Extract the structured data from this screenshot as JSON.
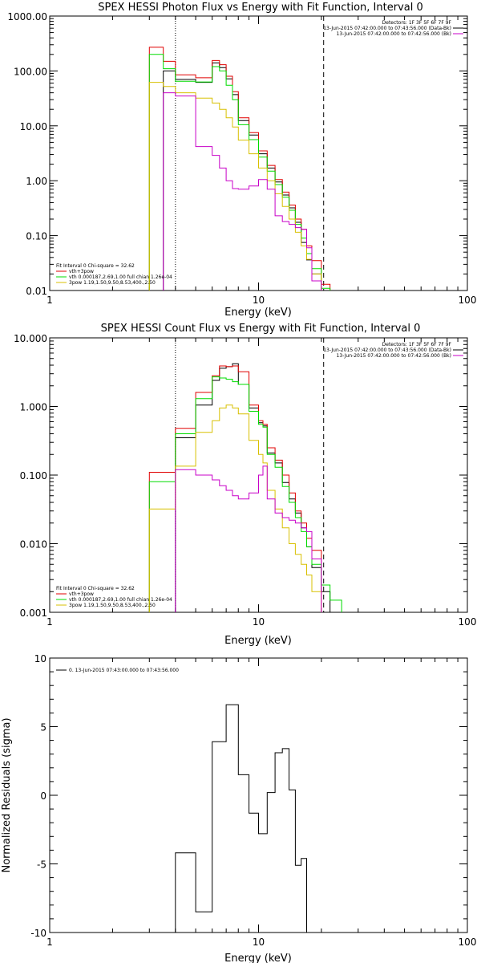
{
  "chart_data": [
    {
      "type": "line",
      "title": "SPEX HESSI Photon Flux vs Energy with Fit Function, Interval 0",
      "xlabel": "Energy (keV)",
      "ylabel": "",
      "x_scale": "log",
      "y_scale": "log",
      "xlim": [
        1,
        100
      ],
      "ylim": [
        0.01,
        1000
      ],
      "x_ticks": [
        "1",
        "10",
        "100"
      ],
      "y_ticks": [
        "0.01",
        "0.10",
        "1.00",
        "10.00",
        "100.00",
        "1000.00"
      ],
      "vlines": [
        {
          "x": 4,
          "style": "dotted",
          "color": "#000000"
        },
        {
          "x": 20.5,
          "style": "dashed",
          "color": "#000000"
        }
      ],
      "legend_top": {
        "position": "top-right",
        "header": "Detectors: 1F 3F 5F 6F 7F 9F",
        "entries": [
          {
            "text": "13-Jun-2015 07:42:00.000 to 07:43:56.000 (Data-Bk)",
            "color": "#000000"
          },
          {
            "text": "13-Jun-2015 07:42:00.000 to 07:42:56.000 (Bk)",
            "color": "#c800c8"
          }
        ]
      },
      "legend_bottom": {
        "position": "bottom-left",
        "header": "Fit Interval 0   Chi-square = 32.62",
        "entries": [
          {
            "text": "vth+3pow",
            "color": "#e00000"
          },
          {
            "text": "vth 0.000187,2.69,1.00  full chian 1.26e-04",
            "color": "#00dc00"
          },
          {
            "text": "3pow 1.19,1.50,9.50,8.53,400.,2.50",
            "color": "#d8c000"
          }
        ]
      },
      "bin_edges": [
        3.0,
        3.5,
        4.0,
        5.0,
        6.0,
        6.5,
        7.0,
        7.5,
        8.0,
        9.0,
        10.0,
        11.0,
        12.0,
        13.0,
        14.0,
        15.0,
        16.0,
        17.0,
        18.0,
        20.0,
        22.0,
        25.0
      ],
      "series": [
        {
          "color": "#000000",
          "values": [
            null,
            100,
            70,
            62,
            140,
            115,
            72,
            37,
            12.5,
            6.8,
            3.1,
            1.7,
            0.95,
            0.55,
            0.32,
            0.175,
            0.075,
            0.036,
            0.02,
            null,
            null
          ]
        },
        {
          "color": "#e00000",
          "values": [
            270,
            150,
            85,
            75,
            155,
            130,
            80,
            42,
            14,
            7.5,
            3.5,
            1.9,
            1.05,
            0.62,
            0.36,
            0.2,
            0.13,
            0.065,
            0.035,
            0.013,
            null
          ]
        },
        {
          "color": "#00dc00",
          "values": [
            200,
            110,
            65,
            63,
            120,
            100,
            55,
            30,
            10.5,
            5.6,
            2.7,
            1.5,
            0.85,
            0.5,
            0.29,
            0.16,
            0.09,
            0.047,
            0.025,
            0.011,
            null
          ]
        },
        {
          "color": "#d8c000",
          "values": [
            62,
            52,
            40,
            32,
            26,
            20,
            14,
            9.5,
            5.5,
            3.1,
            1.7,
            1.0,
            0.58,
            0.34,
            0.2,
            0.115,
            0.065,
            0.037,
            0.02,
            null,
            null
          ]
        },
        {
          "color": "#c800c8",
          "values": [
            null,
            40,
            35,
            4.2,
            2.9,
            1.7,
            1.0,
            0.72,
            0.7,
            0.8,
            1.05,
            0.7,
            0.23,
            0.18,
            0.16,
            0.14,
            0.13,
            0.06,
            0.015,
            null,
            null
          ]
        }
      ]
    },
    {
      "type": "line",
      "title": "SPEX HESSI Count Flux vs Energy with Fit Function, Interval 0",
      "xlabel": "Energy (keV)",
      "ylabel": "",
      "x_scale": "log",
      "y_scale": "log",
      "xlim": [
        1,
        100
      ],
      "ylim": [
        0.001,
        10
      ],
      "x_ticks": [
        "1",
        "10",
        "100"
      ],
      "y_ticks": [
        "0.001",
        "0.010",
        "0.100",
        "1.000",
        "10.000"
      ],
      "vlines": [
        {
          "x": 4,
          "style": "dotted",
          "color": "#000000"
        },
        {
          "x": 20.5,
          "style": "dashed",
          "color": "#000000"
        }
      ],
      "legend_top": {
        "position": "top-right",
        "header": "Detectors: 1F 3F 5F 6F 7F 9F",
        "entries": [
          {
            "text": "13-Jun-2015 07:42:00.000 to 07:43:56.000 (Data-Bk)",
            "color": "#000000"
          },
          {
            "text": "13-Jun-2015 07:42:00.000 to 07:42:56.000 (Bk)",
            "color": "#c800c8"
          }
        ]
      },
      "legend_bottom": {
        "position": "bottom-left",
        "header": "Fit Interval 0   Chi-square = 32.62",
        "entries": [
          {
            "text": "vth+3pow",
            "color": "#e00000"
          },
          {
            "text": "vth 0.000187,2.69,1.00  full chian 1.26e-04",
            "color": "#00dc00"
          },
          {
            "text": "3pow 1.19,1.50,9.50,8.53,400.,2.50",
            "color": "#d8c000"
          }
        ]
      },
      "bin_edges": [
        3.0,
        4.0,
        5.0,
        6.0,
        6.5,
        7.0,
        7.5,
        8.0,
        9.0,
        10.0,
        10.5,
        11.0,
        12.0,
        13.0,
        14.0,
        15.0,
        16.0,
        17.0,
        18.0,
        20.0,
        22.0,
        25.0
      ],
      "series": [
        {
          "color": "#000000",
          "values": [
            null,
            0.35,
            1.05,
            2.4,
            3.6,
            3.8,
            4.2,
            2.1,
            0.95,
            0.58,
            0.52,
            0.21,
            0.15,
            0.078,
            0.045,
            0.028,
            0.017,
            0.009,
            0.0045,
            0.002,
            null
          ]
        },
        {
          "color": "#e00000",
          "values": [
            0.11,
            0.48,
            1.6,
            2.8,
            3.9,
            3.8,
            3.9,
            3.2,
            1.05,
            0.62,
            0.55,
            0.25,
            0.165,
            0.1,
            0.055,
            0.03,
            0.02,
            0.012,
            0.008,
            null,
            null
          ]
        },
        {
          "color": "#00dc00",
          "values": [
            0.08,
            0.4,
            1.3,
            2.7,
            2.6,
            2.5,
            2.3,
            2.1,
            0.85,
            0.55,
            0.5,
            0.2,
            0.13,
            0.068,
            0.04,
            0.024,
            0.015,
            0.009,
            0.005,
            0.0025,
            0.0015
          ]
        },
        {
          "color": "#d8c000",
          "values": [
            0.032,
            0.135,
            0.42,
            0.62,
            0.95,
            1.05,
            0.95,
            0.78,
            0.32,
            0.2,
            0.15,
            0.06,
            0.032,
            0.017,
            0.01,
            0.007,
            0.005,
            0.0035,
            0.002,
            null,
            null
          ]
        },
        {
          "color": "#c800c8",
          "values": [
            null,
            0.12,
            0.1,
            0.085,
            0.07,
            0.06,
            0.05,
            0.045,
            0.055,
            0.1,
            0.135,
            0.045,
            0.028,
            0.024,
            0.022,
            0.02,
            0.017,
            0.015,
            0.006,
            null,
            null
          ]
        }
      ]
    },
    {
      "type": "line",
      "title": "",
      "xlabel": "Energy (keV)",
      "ylabel": "Normalized Residuals (sigma)",
      "x_scale": "log",
      "y_scale": "linear",
      "xlim": [
        1,
        100
      ],
      "ylim": [
        -10,
        10
      ],
      "x_ticks": [
        "1",
        "10",
        "100"
      ],
      "y_ticks": [
        "-10",
        "-5",
        "0",
        "5",
        "10"
      ],
      "legend": {
        "position": "top-left",
        "entries": [
          {
            "text": "0. 13-Jun-2015 07:43:00.000 to 07:43:56.000",
            "color": "#000000"
          }
        ]
      },
      "bin_edges": [
        4.0,
        5.0,
        6.0,
        7.0,
        8.0,
        9.0,
        10.0,
        11.0,
        12.0,
        13.0,
        14.0,
        15.0,
        16.0,
        17.0,
        18.0,
        20.0
      ],
      "series": [
        {
          "color": "#000000",
          "values": [
            -4.2,
            -8.5,
            3.9,
            6.6,
            1.5,
            -1.3,
            -2.8,
            0.2,
            3.1,
            3.4,
            0.4,
            -5.1,
            -4.6
          ]
        }
      ]
    }
  ]
}
